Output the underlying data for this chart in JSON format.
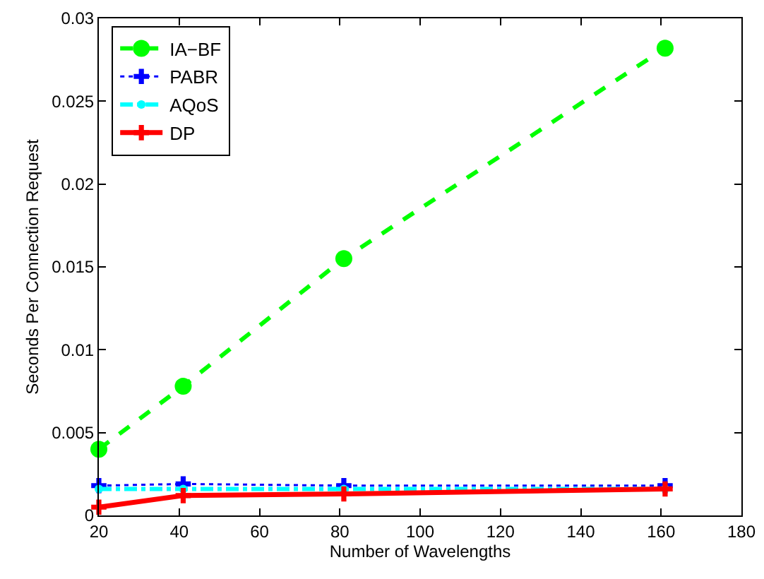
{
  "chart_data": {
    "type": "line",
    "xlabel": "Number of Wavelengths",
    "ylabel": "Seconds Per Connection Request",
    "x": [
      20,
      41,
      81,
      161
    ],
    "series": [
      {
        "name": "IA−BF",
        "color": "#00ff00",
        "values": [
          0.004,
          0.0078,
          0.0155,
          0.0282
        ],
        "marker": "circle",
        "line_style": "dashed"
      },
      {
        "name": "PABR",
        "color": "#0000ff",
        "values": [
          0.0018,
          0.0019,
          0.0018,
          0.0018
        ],
        "marker": "cross",
        "line_style": "dotted"
      },
      {
        "name": "AQoS",
        "color": "#00ffff",
        "values": [
          0.0016,
          0.0016,
          0.0016,
          0.0016
        ],
        "marker": "circle",
        "line_style": "dashdot"
      },
      {
        "name": "DP",
        "color": "#ff0000",
        "values": [
          0.0005,
          0.0012,
          0.0013,
          0.0016
        ],
        "marker": "cross",
        "line_style": "solid"
      }
    ],
    "xlim": [
      20,
      180
    ],
    "xticks": [
      20,
      40,
      60,
      80,
      100,
      120,
      140,
      160,
      180
    ],
    "ylim": [
      0,
      0.03
    ],
    "yticks": [
      0,
      0.005,
      0.01,
      0.015,
      0.02,
      0.025,
      0.03
    ],
    "grid": false,
    "legend": "top left"
  }
}
